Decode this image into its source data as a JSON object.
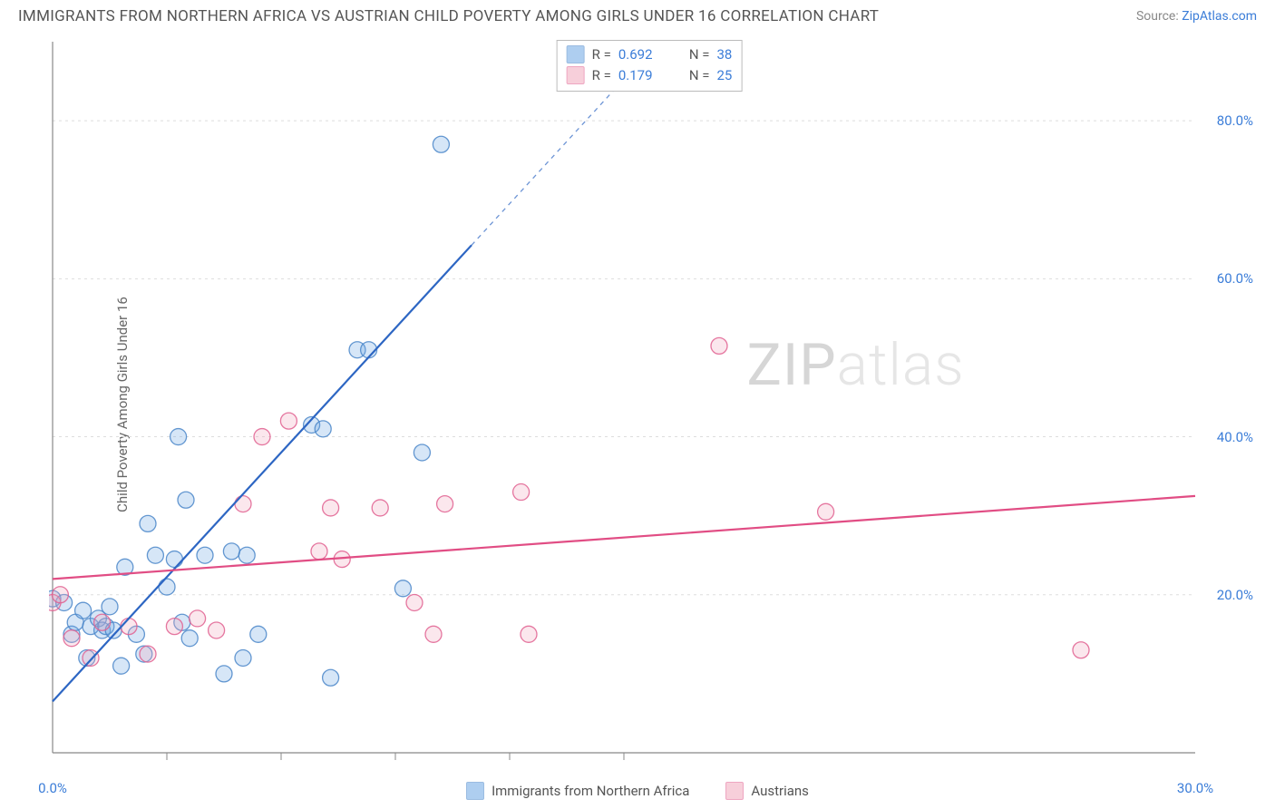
{
  "title": "IMMIGRANTS FROM NORTHERN AFRICA VS AUSTRIAN CHILD POVERTY AMONG GIRLS UNDER 16 CORRELATION CHART",
  "source_label": "Source:",
  "source_name": "ZipAtlas.com",
  "ylabel": "Child Poverty Among Girls Under 16",
  "watermark": {
    "z": "ZIP",
    "rest": "atlas"
  },
  "chart": {
    "type": "scatter",
    "xlim": [
      0.0,
      30.0
    ],
    "ylim": [
      0.0,
      90.0
    ],
    "xtick_major": [
      0.0,
      30.0
    ],
    "xtick_minor": [
      3.0,
      6.0,
      9.0,
      12.0,
      15.0
    ],
    "yticks": [
      20.0,
      40.0,
      60.0,
      80.0
    ],
    "xtick_format": "{v}%",
    "ytick_format": "{v}%",
    "background_color": "#ffffff",
    "grid_color": "#dddddd",
    "axis_color": "#888888",
    "tick_label_color": "#3b7dd8",
    "label_fontsize": 15,
    "marker_radius": 9,
    "marker_fill_opacity": 0.28,
    "marker_stroke_width": 1.3,
    "series": [
      {
        "name": "Immigrants from Northern Africa",
        "color": "#6ca7e4",
        "stroke": "#4a86c9",
        "trend": {
          "slope": 5.25,
          "intercept": 6.5,
          "solid_xmax": 11.0,
          "color": "#2d66c3",
          "width": 2.2
        },
        "stats": {
          "R": "0.692",
          "N": "38"
        },
        "points": [
          [
            0.0,
            19.5
          ],
          [
            0.3,
            19.0
          ],
          [
            0.5,
            15.0
          ],
          [
            0.6,
            16.5
          ],
          [
            0.8,
            18.0
          ],
          [
            0.9,
            12.0
          ],
          [
            1.0,
            16.0
          ],
          [
            1.2,
            17.0
          ],
          [
            1.3,
            15.5
          ],
          [
            1.4,
            16.0
          ],
          [
            1.5,
            18.5
          ],
          [
            1.6,
            15.5
          ],
          [
            1.8,
            11.0
          ],
          [
            1.9,
            23.5
          ],
          [
            2.2,
            15.0
          ],
          [
            2.4,
            12.5
          ],
          [
            2.5,
            29.0
          ],
          [
            2.7,
            25.0
          ],
          [
            3.0,
            21.0
          ],
          [
            3.2,
            24.5
          ],
          [
            3.3,
            40.0
          ],
          [
            3.4,
            16.5
          ],
          [
            3.5,
            32.0
          ],
          [
            3.6,
            14.5
          ],
          [
            4.0,
            25.0
          ],
          [
            4.5,
            10.0
          ],
          [
            4.7,
            25.5
          ],
          [
            5.0,
            12.0
          ],
          [
            5.1,
            25.0
          ],
          [
            5.4,
            15.0
          ],
          [
            6.8,
            41.5
          ],
          [
            7.1,
            41.0
          ],
          [
            7.3,
            9.5
          ],
          [
            8.0,
            51.0
          ],
          [
            8.3,
            51.0
          ],
          [
            9.2,
            20.8
          ],
          [
            9.7,
            38.0
          ],
          [
            10.2,
            77.0
          ]
        ]
      },
      {
        "name": "Austrians",
        "color": "#f2a8bd",
        "stroke": "#e15f8f",
        "trend": {
          "slope": 0.35,
          "intercept": 22.0,
          "solid_xmax": 30.0,
          "color": "#e14d84",
          "width": 2.2
        },
        "stats": {
          "R": "0.179",
          "N": "25"
        },
        "points": [
          [
            0.0,
            19.0
          ],
          [
            0.2,
            20.0
          ],
          [
            0.5,
            14.5
          ],
          [
            1.0,
            12.0
          ],
          [
            1.3,
            16.5
          ],
          [
            2.0,
            16.0
          ],
          [
            2.5,
            12.5
          ],
          [
            3.2,
            16.0
          ],
          [
            3.8,
            17.0
          ],
          [
            4.3,
            15.5
          ],
          [
            5.0,
            31.5
          ],
          [
            5.5,
            40.0
          ],
          [
            6.2,
            42.0
          ],
          [
            7.0,
            25.5
          ],
          [
            7.3,
            31.0
          ],
          [
            7.6,
            24.5
          ],
          [
            8.6,
            31.0
          ],
          [
            9.5,
            19.0
          ],
          [
            10.0,
            15.0
          ],
          [
            10.3,
            31.5
          ],
          [
            12.3,
            33.0
          ],
          [
            12.5,
            15.0
          ],
          [
            17.5,
            51.5
          ],
          [
            20.3,
            30.5
          ],
          [
            27.0,
            13.0
          ]
        ]
      }
    ]
  },
  "stats_box": {
    "R_label": "R =",
    "N_label": "N ="
  }
}
